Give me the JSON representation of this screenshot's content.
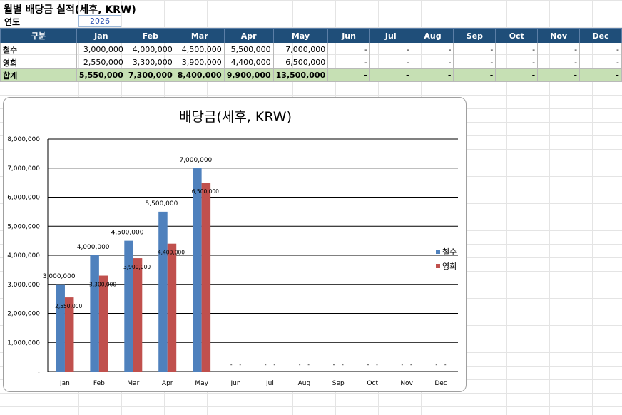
{
  "sheet": {
    "title": "월별 배당금 실적(세후, KRW)",
    "year_label": "연도",
    "year_value": "2026"
  },
  "table": {
    "header": [
      "구분",
      "Jan",
      "Feb",
      "Mar",
      "Apr",
      "May",
      "Jun",
      "Jul",
      "Aug",
      "Sep",
      "Oct",
      "Nov",
      "Dec"
    ],
    "rows": [
      {
        "label": "철수",
        "cells": [
          "3,000,000",
          "4,000,000",
          "4,500,000",
          "5,500,000",
          "7,000,000",
          "-",
          "-",
          "-",
          "-",
          "-",
          "-",
          "-"
        ]
      },
      {
        "label": "영희",
        "cells": [
          "2,550,000",
          "3,300,000",
          "3,900,000",
          "4,400,000",
          "6,500,000",
          "-",
          "-",
          "-",
          "-",
          "-",
          "-",
          "-"
        ]
      }
    ],
    "total": {
      "label": "합계",
      "cells": [
        "5,550,000",
        "7,300,000",
        "8,400,000",
        "9,900,000",
        "13,500,000",
        "-",
        "-",
        "-",
        "-",
        "-",
        "-",
        "-"
      ]
    }
  },
  "chart_data": {
    "type": "bar",
    "title": "배당금(세후, KRW)",
    "categories": [
      "Jan",
      "Feb",
      "Mar",
      "Apr",
      "May",
      "Jun",
      "Jul",
      "Aug",
      "Sep",
      "Oct",
      "Nov",
      "Dec"
    ],
    "series": [
      {
        "name": "철수",
        "color": "#4f81bd",
        "values": [
          3000000,
          4000000,
          4500000,
          5500000,
          7000000,
          0,
          0,
          0,
          0,
          0,
          0,
          0
        ],
        "labels": [
          "3,000,000",
          "4,000,000",
          "4,500,000",
          "5,500,000",
          "7,000,000",
          "-",
          "-",
          "-",
          "-",
          "-",
          "-",
          "-"
        ]
      },
      {
        "name": "영희",
        "color": "#c0504d",
        "values": [
          2550000,
          3300000,
          3900000,
          4400000,
          6500000,
          0,
          0,
          0,
          0,
          0,
          0,
          0
        ],
        "labels": [
          "2,550,000",
          "3,300,000",
          "3,900,000",
          "4,400,000",
          "6,500,000",
          "-",
          "-",
          "-",
          "-",
          "-",
          "-",
          "-"
        ]
      }
    ],
    "y_ticks": [
      "-",
      "1,000,000",
      "2,000,000",
      "3,000,000",
      "4,000,000",
      "5,000,000",
      "6,000,000",
      "7,000,000",
      "8,000,000"
    ],
    "ylim": [
      0,
      8000000
    ],
    "grid": true,
    "legend_position": "right"
  }
}
